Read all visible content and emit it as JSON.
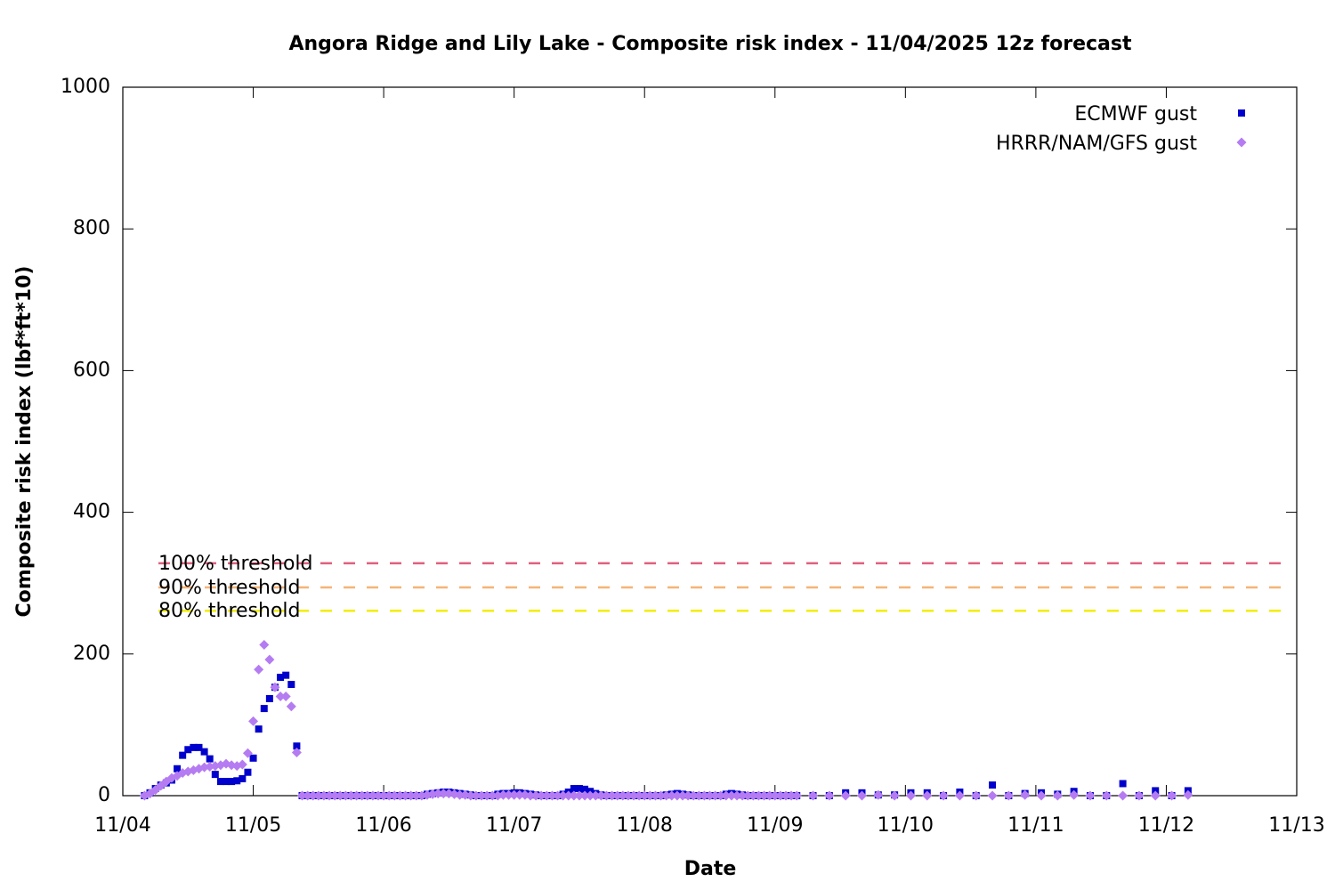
{
  "chart_data": {
    "type": "scatter",
    "title": "Angora Ridge and Lily Lake - Composite risk index - 11/04/2025 12z forecast",
    "xlabel": "Date",
    "ylabel": "Composite risk index (lbf*ft*10)",
    "xlim": [
      0,
      216
    ],
    "xticks": [
      {
        "value": 0,
        "label": "11/04"
      },
      {
        "value": 24,
        "label": "11/05"
      },
      {
        "value": 48,
        "label": "11/06"
      },
      {
        "value": 72,
        "label": "11/07"
      },
      {
        "value": 96,
        "label": "11/08"
      },
      {
        "value": 120,
        "label": "11/09"
      },
      {
        "value": 144,
        "label": "11/10"
      },
      {
        "value": 168,
        "label": "11/11"
      },
      {
        "value": 192,
        "label": "11/12"
      },
      {
        "value": 216,
        "label": "11/13"
      }
    ],
    "ylim": [
      0,
      1000
    ],
    "yticks": [
      0,
      200,
      400,
      600,
      800,
      1000
    ],
    "grid": false,
    "legend": "top-right",
    "x": [
      4,
      5,
      6,
      7,
      8,
      9,
      10,
      11,
      12,
      13,
      14,
      15,
      16,
      17,
      18,
      19,
      20,
      21,
      22,
      23,
      24,
      25,
      26,
      27,
      28,
      29,
      30,
      31,
      32,
      33,
      34,
      35,
      36,
      37,
      38,
      39,
      40,
      41,
      42,
      43,
      44,
      45,
      46,
      47,
      48,
      49,
      50,
      51,
      52,
      53,
      54,
      55,
      56,
      57,
      58,
      59,
      60,
      61,
      62,
      63,
      64,
      65,
      66,
      67,
      68,
      69,
      70,
      71,
      72,
      73,
      74,
      75,
      76,
      77,
      78,
      79,
      80,
      81,
      82,
      83,
      84,
      85,
      86,
      87,
      88,
      89,
      90,
      91,
      92,
      93,
      94,
      95,
      96,
      97,
      98,
      99,
      100,
      101,
      102,
      103,
      104,
      105,
      106,
      107,
      108,
      109,
      110,
      111,
      112,
      113,
      114,
      115,
      116,
      117,
      118,
      119,
      120,
      121,
      122,
      123,
      124,
      127,
      130,
      133,
      136,
      139,
      142,
      145,
      148,
      151,
      154,
      157,
      160,
      163,
      166,
      169,
      172,
      175,
      178,
      181,
      184,
      187,
      190,
      193,
      196
    ],
    "series": [
      {
        "name": "ECMWF gust",
        "color": "#0000cc",
        "marker": "square",
        "values": [
          0,
          4,
          10,
          15,
          18,
          22,
          38,
          57,
          65,
          68,
          68,
          62,
          52,
          30,
          20,
          20,
          20,
          21,
          24,
          33,
          53,
          94,
          123,
          137,
          153,
          167,
          170,
          157,
          70,
          0,
          0,
          0,
          0,
          0,
          0,
          0,
          0,
          0,
          0,
          0,
          0,
          0,
          0,
          0,
          0,
          0,
          0,
          0,
          0,
          0,
          0,
          0,
          2,
          3,
          4,
          5,
          5,
          4,
          3,
          2,
          1,
          0,
          0,
          0,
          0,
          2,
          3,
          3,
          4,
          4,
          3,
          2,
          1,
          0,
          0,
          0,
          0,
          2,
          5,
          10,
          10,
          9,
          6,
          3,
          1,
          0,
          0,
          0,
          0,
          0,
          0,
          0,
          0,
          0,
          0,
          0,
          1,
          2,
          3,
          2,
          1,
          0,
          0,
          0,
          0,
          0,
          0,
          2,
          3,
          2,
          1,
          0,
          0,
          0,
          0,
          0,
          0,
          0,
          0,
          0,
          0,
          0,
          0,
          4,
          4,
          1,
          1,
          4,
          4,
          0,
          5,
          0,
          15,
          0,
          3,
          4,
          2,
          6,
          0,
          0,
          17,
          0,
          7,
          0,
          7
        ]
      },
      {
        "name": "HRRR/NAM/GFS gust",
        "color": "#b57cf2",
        "marker": "diamond",
        "values": [
          0,
          3,
          8,
          14,
          20,
          25,
          28,
          32,
          34,
          36,
          38,
          40,
          41,
          42,
          43,
          45,
          43,
          42,
          44,
          60,
          105,
          178,
          213,
          192,
          153,
          140,
          140,
          126,
          61,
          0,
          0,
          0,
          0,
          0,
          0,
          0,
          0,
          0,
          0,
          0,
          0,
          0,
          0,
          0,
          0,
          0,
          0,
          0,
          0,
          0,
          0,
          0,
          1,
          2,
          3,
          3,
          3,
          2,
          1,
          1,
          0,
          0,
          0,
          0,
          0,
          0,
          1,
          1,
          1,
          1,
          1,
          0,
          0,
          0,
          0,
          0,
          0,
          0,
          0,
          0,
          0,
          0,
          0,
          0,
          0,
          0,
          0,
          0,
          0,
          0,
          0,
          0,
          0,
          0,
          0,
          0,
          0,
          0,
          0,
          0,
          0,
          0,
          0,
          0,
          0,
          0,
          0,
          0,
          0,
          0,
          0,
          0,
          0,
          0,
          0,
          0,
          0,
          0,
          0,
          0,
          0,
          0,
          0,
          0,
          0,
          1,
          0,
          0,
          0,
          0,
          0,
          0,
          0,
          0,
          1,
          0,
          0,
          1,
          0,
          0,
          0,
          0,
          0,
          0,
          1
        ]
      }
    ],
    "thresholds": [
      {
        "name": "100% threshold",
        "value": 328,
        "color": "#e0607e"
      },
      {
        "name": "90% threshold",
        "value": 294,
        "color": "#f5b476"
      },
      {
        "name": "80% threshold",
        "value": 261,
        "color": "#f2ee00"
      }
    ]
  }
}
